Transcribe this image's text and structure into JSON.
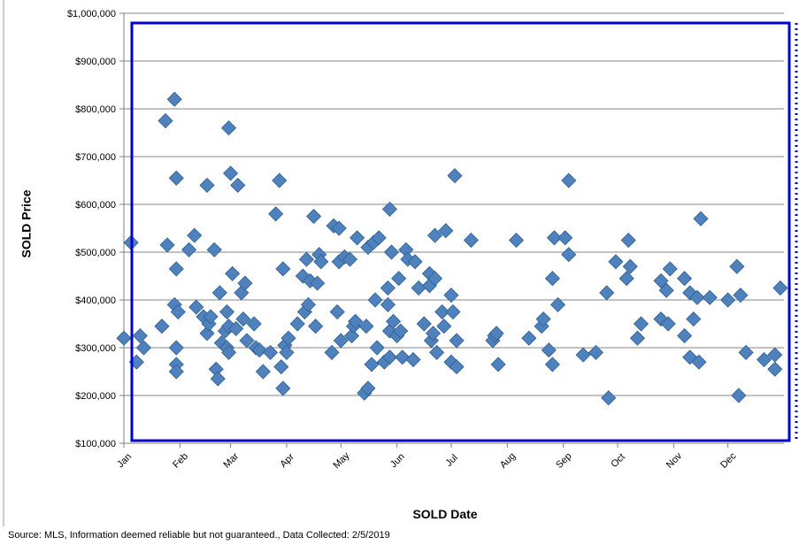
{
  "footer": {
    "source": "Source: MLS, Information deemed reliable but not guaranteed., Data Collected: 2/5/2019"
  },
  "chart_data": {
    "type": "scatter",
    "xlabel": "SOLD Date",
    "ylabel": "SOLD Price",
    "ylim": [
      100000,
      1000000
    ],
    "yticks": [
      100000,
      200000,
      300000,
      400000,
      500000,
      600000,
      700000,
      800000,
      900000,
      1000000
    ],
    "ytick_labels": [
      "$100,000",
      "$200,000",
      "$300,000",
      "$400,000",
      "$500,000",
      "$600,000",
      "$700,000",
      "$800,000",
      "$900,000",
      "$1,000,000"
    ],
    "xlim": [
      "2018-01-01",
      "2019-01-01"
    ],
    "xticks": [
      "2018-01-01",
      "2018-02-01",
      "2018-03-01",
      "2018-04-01",
      "2018-05-01",
      "2018-06-01",
      "2018-07-01",
      "2018-08-01",
      "2018-09-01",
      "2018-10-01",
      "2018-11-01",
      "2018-12-01"
    ],
    "xtick_labels": [
      "Jan",
      "Feb",
      "Mar",
      "Apr",
      "May",
      "Jun",
      "Jul",
      "Aug",
      "Sep",
      "Oct",
      "Nov",
      "Dec"
    ],
    "grid": "horizontal",
    "marker": "diamond",
    "marker_color": "#4F81BD",
    "highlight_box_color": "#0000CC",
    "points": [
      {
        "x": "2018-01-01",
        "y": 320000
      },
      {
        "x": "2018-01-05",
        "y": 520000
      },
      {
        "x": "2018-01-08",
        "y": 270000
      },
      {
        "x": "2018-01-10",
        "y": 325000
      },
      {
        "x": "2018-01-12",
        "y": 300000
      },
      {
        "x": "2018-01-22",
        "y": 345000
      },
      {
        "x": "2018-01-24",
        "y": 775000
      },
      {
        "x": "2018-01-25",
        "y": 515000
      },
      {
        "x": "2018-01-29",
        "y": 820000
      },
      {
        "x": "2018-01-29",
        "y": 390000
      },
      {
        "x": "2018-01-30",
        "y": 655000
      },
      {
        "x": "2018-01-30",
        "y": 465000
      },
      {
        "x": "2018-01-30",
        "y": 300000
      },
      {
        "x": "2018-01-30",
        "y": 265000
      },
      {
        "x": "2018-01-30",
        "y": 250000
      },
      {
        "x": "2018-01-31",
        "y": 375000
      },
      {
        "x": "2018-02-06",
        "y": 505000
      },
      {
        "x": "2018-02-09",
        "y": 535000
      },
      {
        "x": "2018-02-10",
        "y": 385000
      },
      {
        "x": "2018-02-14",
        "y": 365000
      },
      {
        "x": "2018-02-16",
        "y": 640000
      },
      {
        "x": "2018-02-16",
        "y": 330000
      },
      {
        "x": "2018-02-17",
        "y": 350000
      },
      {
        "x": "2018-02-18",
        "y": 365000
      },
      {
        "x": "2018-02-20",
        "y": 505000
      },
      {
        "x": "2018-02-21",
        "y": 255000
      },
      {
        "x": "2018-02-22",
        "y": 235000
      },
      {
        "x": "2018-02-23",
        "y": 415000
      },
      {
        "x": "2018-02-24",
        "y": 310000
      },
      {
        "x": "2018-02-26",
        "y": 335000
      },
      {
        "x": "2018-02-27",
        "y": 375000
      },
      {
        "x": "2018-02-27",
        "y": 300000
      },
      {
        "x": "2018-02-28",
        "y": 760000
      },
      {
        "x": "2018-02-28",
        "y": 290000
      },
      {
        "x": "2018-02-28",
        "y": 345000
      },
      {
        "x": "2018-03-01",
        "y": 665000
      },
      {
        "x": "2018-03-02",
        "y": 455000
      },
      {
        "x": "2018-03-04",
        "y": 340000
      },
      {
        "x": "2018-03-05",
        "y": 640000
      },
      {
        "x": "2018-03-07",
        "y": 415000
      },
      {
        "x": "2018-03-08",
        "y": 360000
      },
      {
        "x": "2018-03-09",
        "y": 435000
      },
      {
        "x": "2018-03-10",
        "y": 315000
      },
      {
        "x": "2018-03-14",
        "y": 350000
      },
      {
        "x": "2018-03-15",
        "y": 300000
      },
      {
        "x": "2018-03-17",
        "y": 295000
      },
      {
        "x": "2018-03-19",
        "y": 250000
      },
      {
        "x": "2018-03-23",
        "y": 290000
      },
      {
        "x": "2018-03-26",
        "y": 580000
      },
      {
        "x": "2018-03-28",
        "y": 650000
      },
      {
        "x": "2018-03-29",
        "y": 260000
      },
      {
        "x": "2018-03-30",
        "y": 465000
      },
      {
        "x": "2018-03-30",
        "y": 215000
      },
      {
        "x": "2018-03-31",
        "y": 305000
      },
      {
        "x": "2018-04-01",
        "y": 290000
      },
      {
        "x": "2018-04-02",
        "y": 320000
      },
      {
        "x": "2018-04-07",
        "y": 350000
      },
      {
        "x": "2018-04-10",
        "y": 450000
      },
      {
        "x": "2018-04-11",
        "y": 375000
      },
      {
        "x": "2018-04-12",
        "y": 485000
      },
      {
        "x": "2018-04-13",
        "y": 390000
      },
      {
        "x": "2018-04-14",
        "y": 440000
      },
      {
        "x": "2018-04-16",
        "y": 575000
      },
      {
        "x": "2018-04-17",
        "y": 345000
      },
      {
        "x": "2018-04-18",
        "y": 435000
      },
      {
        "x": "2018-04-19",
        "y": 495000
      },
      {
        "x": "2018-04-20",
        "y": 480000
      },
      {
        "x": "2018-04-26",
        "y": 290000
      },
      {
        "x": "2018-04-27",
        "y": 555000
      },
      {
        "x": "2018-04-29",
        "y": 375000
      },
      {
        "x": "2018-04-30",
        "y": 550000
      },
      {
        "x": "2018-04-30",
        "y": 480000
      },
      {
        "x": "2018-05-01",
        "y": 315000
      },
      {
        "x": "2018-05-03",
        "y": 490000
      },
      {
        "x": "2018-05-06",
        "y": 485000
      },
      {
        "x": "2018-05-07",
        "y": 325000
      },
      {
        "x": "2018-05-08",
        "y": 345000
      },
      {
        "x": "2018-05-09",
        "y": 355000
      },
      {
        "x": "2018-05-10",
        "y": 530000
      },
      {
        "x": "2018-05-14",
        "y": 205000
      },
      {
        "x": "2018-05-15",
        "y": 345000
      },
      {
        "x": "2018-05-16",
        "y": 215000
      },
      {
        "x": "2018-05-16",
        "y": 510000
      },
      {
        "x": "2018-05-18",
        "y": 265000
      },
      {
        "x": "2018-05-19",
        "y": 520000
      },
      {
        "x": "2018-05-20",
        "y": 400000
      },
      {
        "x": "2018-05-21",
        "y": 300000
      },
      {
        "x": "2018-05-22",
        "y": 530000
      },
      {
        "x": "2018-05-25",
        "y": 270000
      },
      {
        "x": "2018-05-27",
        "y": 425000
      },
      {
        "x": "2018-05-27",
        "y": 390000
      },
      {
        "x": "2018-05-28",
        "y": 590000
      },
      {
        "x": "2018-05-28",
        "y": 335000
      },
      {
        "x": "2018-05-28",
        "y": 280000
      },
      {
        "x": "2018-05-29",
        "y": 500000
      },
      {
        "x": "2018-05-30",
        "y": 355000
      },
      {
        "x": "2018-06-01",
        "y": 325000
      },
      {
        "x": "2018-06-02",
        "y": 445000
      },
      {
        "x": "2018-06-03",
        "y": 335000
      },
      {
        "x": "2018-06-04",
        "y": 280000
      },
      {
        "x": "2018-06-06",
        "y": 505000
      },
      {
        "x": "2018-06-07",
        "y": 485000
      },
      {
        "x": "2018-06-10",
        "y": 275000
      },
      {
        "x": "2018-06-11",
        "y": 480000
      },
      {
        "x": "2018-06-13",
        "y": 425000
      },
      {
        "x": "2018-06-16",
        "y": 350000
      },
      {
        "x": "2018-06-19",
        "y": 455000
      },
      {
        "x": "2018-06-19",
        "y": 430000
      },
      {
        "x": "2018-06-20",
        "y": 315000
      },
      {
        "x": "2018-06-21",
        "y": 330000
      },
      {
        "x": "2018-06-22",
        "y": 535000
      },
      {
        "x": "2018-06-22",
        "y": 445000
      },
      {
        "x": "2018-06-23",
        "y": 290000
      },
      {
        "x": "2018-06-26",
        "y": 375000
      },
      {
        "x": "2018-06-27",
        "y": 345000
      },
      {
        "x": "2018-06-28",
        "y": 545000
      },
      {
        "x": "2018-07-01",
        "y": 410000
      },
      {
        "x": "2018-07-01",
        "y": 270000
      },
      {
        "x": "2018-07-02",
        "y": 375000
      },
      {
        "x": "2018-07-03",
        "y": 660000
      },
      {
        "x": "2018-07-04",
        "y": 315000
      },
      {
        "x": "2018-07-04",
        "y": 260000
      },
      {
        "x": "2018-07-12",
        "y": 525000
      },
      {
        "x": "2018-07-24",
        "y": 315000
      },
      {
        "x": "2018-07-25",
        "y": 325000
      },
      {
        "x": "2018-07-26",
        "y": 330000
      },
      {
        "x": "2018-07-27",
        "y": 265000
      },
      {
        "x": "2018-08-06",
        "y": 525000
      },
      {
        "x": "2018-08-13",
        "y": 320000
      },
      {
        "x": "2018-08-20",
        "y": 345000
      },
      {
        "x": "2018-08-21",
        "y": 360000
      },
      {
        "x": "2018-08-24",
        "y": 295000
      },
      {
        "x": "2018-08-26",
        "y": 445000
      },
      {
        "x": "2018-08-26",
        "y": 265000
      },
      {
        "x": "2018-08-27",
        "y": 530000
      },
      {
        "x": "2018-08-29",
        "y": 390000
      },
      {
        "x": "2018-09-02",
        "y": 530000
      },
      {
        "x": "2018-09-04",
        "y": 495000
      },
      {
        "x": "2018-09-04",
        "y": 650000
      },
      {
        "x": "2018-09-12",
        "y": 285000
      },
      {
        "x": "2018-09-19",
        "y": 290000
      },
      {
        "x": "2018-09-25",
        "y": 415000
      },
      {
        "x": "2018-09-26",
        "y": 195000
      },
      {
        "x": "2018-09-30",
        "y": 480000
      },
      {
        "x": "2018-10-06",
        "y": 445000
      },
      {
        "x": "2018-10-07",
        "y": 525000
      },
      {
        "x": "2018-10-08",
        "y": 470000
      },
      {
        "x": "2018-10-12",
        "y": 320000
      },
      {
        "x": "2018-10-14",
        "y": 350000
      },
      {
        "x": "2018-10-25",
        "y": 440000
      },
      {
        "x": "2018-10-25",
        "y": 360000
      },
      {
        "x": "2018-10-28",
        "y": 420000
      },
      {
        "x": "2018-10-29",
        "y": 350000
      },
      {
        "x": "2018-10-30",
        "y": 465000
      },
      {
        "x": "2018-11-07",
        "y": 445000
      },
      {
        "x": "2018-11-07",
        "y": 325000
      },
      {
        "x": "2018-11-10",
        "y": 415000
      },
      {
        "x": "2018-11-10",
        "y": 280000
      },
      {
        "x": "2018-11-12",
        "y": 360000
      },
      {
        "x": "2018-11-14",
        "y": 405000
      },
      {
        "x": "2018-11-15",
        "y": 270000
      },
      {
        "x": "2018-11-16",
        "y": 570000
      },
      {
        "x": "2018-11-21",
        "y": 405000
      },
      {
        "x": "2018-12-01",
        "y": 400000
      },
      {
        "x": "2018-12-06",
        "y": 470000
      },
      {
        "x": "2018-12-07",
        "y": 200000
      },
      {
        "x": "2018-12-08",
        "y": 410000
      },
      {
        "x": "2018-12-11",
        "y": 290000
      },
      {
        "x": "2018-12-21",
        "y": 275000
      },
      {
        "x": "2018-12-27",
        "y": 285000
      },
      {
        "x": "2018-12-27",
        "y": 255000
      },
      {
        "x": "2018-12-30",
        "y": 425000
      }
    ]
  }
}
